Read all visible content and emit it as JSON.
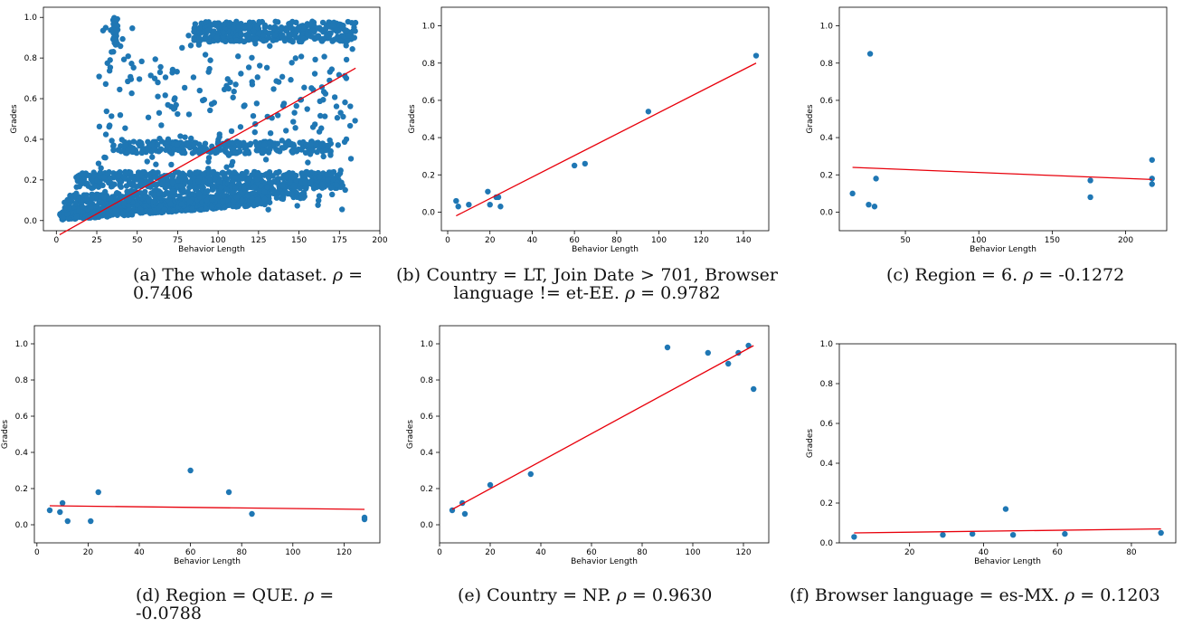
{
  "panels": [
    {
      "caption": {
        "label": "(a)",
        "text": "The whole dataset.",
        "metric": "0.7406"
      },
      "chart_data": {
        "type": "scatter",
        "xlabel": "Behavior Length",
        "ylabel": "Grades",
        "xlim": [
          -8,
          200
        ],
        "ylim": [
          -0.05,
          1.05
        ],
        "xticks": [
          0,
          25,
          50,
          75,
          100,
          125,
          150,
          175,
          200
        ],
        "yticks": [
          0.0,
          0.2,
          0.4,
          0.6,
          0.8,
          1.0
        ],
        "fit_line": {
          "x": [
            2,
            185
          ],
          "y": [
            -0.07,
            0.75
          ]
        },
        "dense": true,
        "points": []
      }
    },
    {
      "caption": {
        "label": "(b)",
        "text": "Country = LT, Join Date > 701, Browser language != et-EE.",
        "metric": "0.9782"
      },
      "chart_data": {
        "type": "scatter",
        "xlabel": "Behavior Length",
        "ylabel": "Grades",
        "xlim": [
          -3,
          152
        ],
        "ylim": [
          -0.1,
          1.1
        ],
        "xticks": [
          0,
          20,
          40,
          60,
          80,
          100,
          120,
          140
        ],
        "yticks": [
          0.0,
          0.2,
          0.4,
          0.6,
          0.8,
          1.0
        ],
        "fit_line": {
          "x": [
            4,
            146
          ],
          "y": [
            -0.02,
            0.8
          ]
        },
        "points": [
          [
            4,
            0.06
          ],
          [
            5,
            0.03
          ],
          [
            10,
            0.04
          ],
          [
            19,
            0.11
          ],
          [
            20,
            0.04
          ],
          [
            23,
            0.08
          ],
          [
            24,
            0.08
          ],
          [
            25,
            0.03
          ],
          [
            60,
            0.25
          ],
          [
            65,
            0.26
          ],
          [
            95,
            0.54
          ],
          [
            146,
            0.84
          ]
        ]
      }
    },
    {
      "caption": {
        "label": "(c)",
        "text": "Region = 6.",
        "metric": "-0.1272"
      },
      "chart_data": {
        "type": "scatter",
        "xlabel": "Behavior Length",
        "ylabel": "Grades",
        "xlim": [
          5,
          228
        ],
        "ylim": [
          -0.1,
          1.1
        ],
        "xticks": [
          50,
          100,
          150,
          200
        ],
        "yticks": [
          0.0,
          0.2,
          0.4,
          0.6,
          0.8,
          1.0
        ],
        "fit_line": {
          "x": [
            14,
            218
          ],
          "y": [
            0.24,
            0.175
          ]
        },
        "points": [
          [
            14,
            0.1
          ],
          [
            25,
            0.04
          ],
          [
            26,
            0.85
          ],
          [
            29,
            0.03
          ],
          [
            30,
            0.18
          ],
          [
            176,
            0.17
          ],
          [
            176,
            0.08
          ],
          [
            218,
            0.28
          ],
          [
            218,
            0.18
          ],
          [
            218,
            0.15
          ]
        ]
      }
    },
    {
      "caption": {
        "label": "(d)",
        "text": "Region = QUE.",
        "metric": "-0.0788"
      },
      "chart_data": {
        "type": "scatter",
        "xlabel": "Behavior Length",
        "ylabel": "Grades",
        "xlim": [
          -1,
          134
        ],
        "ylim": [
          -0.1,
          1.1
        ],
        "xticks": [
          0,
          20,
          40,
          60,
          80,
          100,
          120
        ],
        "yticks": [
          0.0,
          0.2,
          0.4,
          0.6,
          0.8,
          1.0
        ],
        "fit_line": {
          "x": [
            5,
            128
          ],
          "y": [
            0.105,
            0.085
          ]
        },
        "points": [
          [
            5,
            0.08
          ],
          [
            9,
            0.07
          ],
          [
            10,
            0.12
          ],
          [
            12,
            0.02
          ],
          [
            21,
            0.02
          ],
          [
            24,
            0.18
          ],
          [
            60,
            0.3
          ],
          [
            75,
            0.18
          ],
          [
            84,
            0.06
          ],
          [
            128,
            0.04
          ],
          [
            128,
            0.03
          ]
        ]
      }
    },
    {
      "caption": {
        "label": "(e)",
        "text": "Country = NP.",
        "metric": "0.9630"
      },
      "chart_data": {
        "type": "scatter",
        "xlabel": "Behavior Length",
        "ylabel": "Grades",
        "xlim": [
          0,
          130
        ],
        "ylim": [
          -0.1,
          1.1
        ],
        "xticks": [
          0,
          20,
          40,
          60,
          80,
          100,
          120
        ],
        "yticks": [
          0.0,
          0.2,
          0.4,
          0.6,
          0.8,
          1.0
        ],
        "fit_line": {
          "x": [
            5,
            124
          ],
          "y": [
            0.085,
            0.99
          ]
        },
        "points": [
          [
            5,
            0.08
          ],
          [
            9,
            0.12
          ],
          [
            10,
            0.06
          ],
          [
            20,
            0.22
          ],
          [
            36,
            0.28
          ],
          [
            90,
            0.98
          ],
          [
            106,
            0.95
          ],
          [
            114,
            0.89
          ],
          [
            118,
            0.95
          ],
          [
            122,
            0.99
          ],
          [
            124,
            0.75
          ]
        ]
      }
    },
    {
      "caption": {
        "label": "(f)",
        "text": "Browser language = es-MX.",
        "metric": "0.1203"
      },
      "chart_data": {
        "type": "scatter",
        "xlabel": "Behavior Length",
        "ylabel": "Grades",
        "xlim": [
          1,
          92
        ],
        "ylim": [
          0.0,
          1.0
        ],
        "xticks": [
          20,
          40,
          60,
          80
        ],
        "yticks": [
          0.0,
          0.2,
          0.4,
          0.6,
          0.8,
          1.0
        ],
        "fit_line": {
          "x": [
            5,
            88
          ],
          "y": [
            0.05,
            0.07
          ]
        },
        "points": [
          [
            5,
            0.03
          ],
          [
            29,
            0.04
          ],
          [
            37,
            0.045
          ],
          [
            46,
            0.17
          ],
          [
            48,
            0.04
          ],
          [
            62,
            0.045
          ],
          [
            88,
            0.05
          ]
        ]
      }
    }
  ]
}
